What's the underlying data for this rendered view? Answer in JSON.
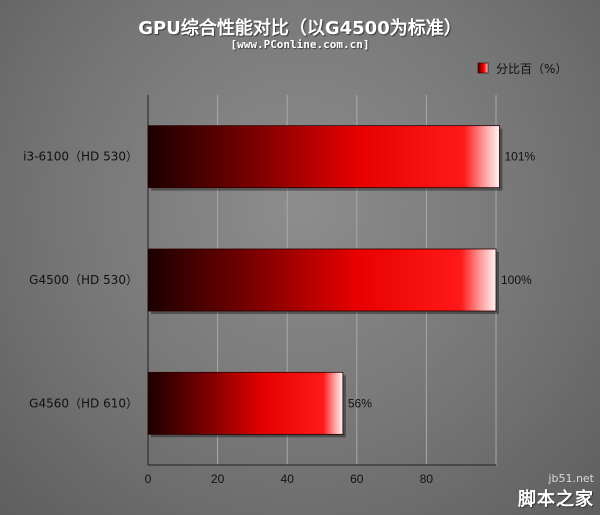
{
  "chart_data": {
    "type": "bar",
    "orientation": "horizontal",
    "title": "GPU综合性能对比（以G4500为标准）",
    "subtitle": "[www.PConline.com.cn]",
    "categories": [
      "i3-6100（HD 530）",
      "G4500（HD 530）",
      "G4560（HD 610）"
    ],
    "series": [
      {
        "name": "分比百（%）",
        "values": [
          101,
          100,
          56
        ],
        "color": "#ff0000"
      }
    ],
    "value_labels": [
      "101%",
      "100%",
      "56%"
    ],
    "xlim": [
      0,
      100
    ],
    "xticks": [
      0,
      20,
      40,
      60,
      80
    ],
    "grid": true,
    "legend_position": "top-right"
  },
  "watermark": {
    "url": "jb51.net",
    "name": "脚本之家"
  }
}
